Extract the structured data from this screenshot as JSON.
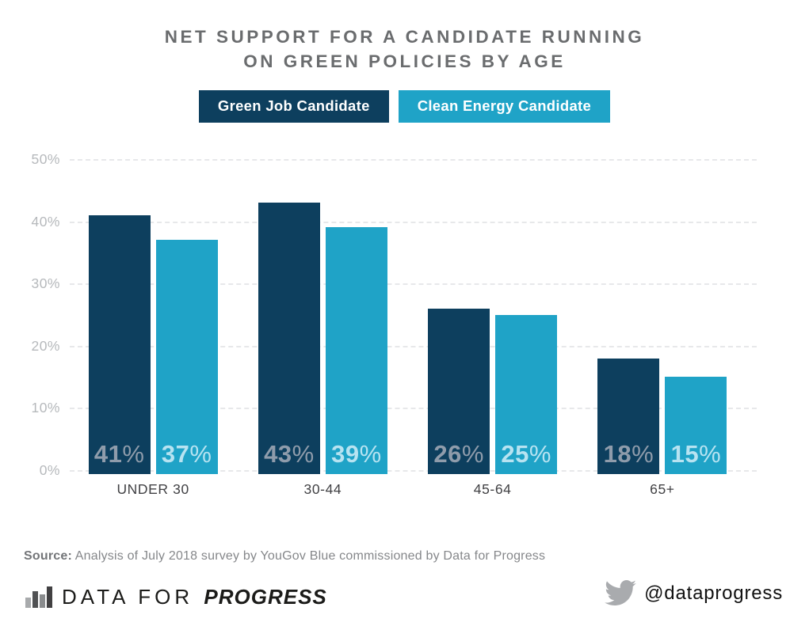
{
  "title": {
    "line1": "NET SUPPORT FOR A CANDIDATE RUNNING",
    "line2": "ON GREEN POLICIES BY AGE"
  },
  "legend": [
    {
      "label": "Green Job Candidate",
      "color": "#0d3f5e"
    },
    {
      "label": "Clean Energy Candidate",
      "color": "#1fa3c7"
    }
  ],
  "chart_data": {
    "type": "bar",
    "title": "NET SUPPORT FOR A CANDIDATE RUNNING ON GREEN POLICIES BY AGE",
    "categories": [
      "UNDER 30",
      "30-44",
      "45-64",
      "65+"
    ],
    "series": [
      {
        "name": "Green Job Candidate",
        "color": "#0d3f5e",
        "label_color": "#8f9cab",
        "values": [
          41,
          43,
          26,
          18
        ]
      },
      {
        "name": "Clean Energy Candidate",
        "color": "#1fa3c7",
        "label_color": "#b7e3f1",
        "values": [
          37,
          39,
          25,
          15
        ]
      }
    ],
    "value_suffix": "%",
    "xlabel": "",
    "ylabel": "",
    "ylim": [
      0,
      50
    ],
    "yticks": [
      0,
      10,
      20,
      30,
      40,
      50
    ],
    "ytick_suffix": "%",
    "grid": "dashed-horizontal",
    "legend_position": "top"
  },
  "source": {
    "prefix": "Source:",
    "text": "Analysis of July 2018 survey by YouGov Blue commissioned by Data for Progress"
  },
  "footer": {
    "logo_text_light": "DATA FOR",
    "logo_text_bold": "PROGRESS",
    "twitter_icon": "twitter-bird-icon",
    "twitter_handle": "@dataprogress"
  },
  "colors": {
    "title_text": "#6a6c6e",
    "axis_tick_text": "#b6b9bc",
    "category_text": "#414144",
    "gridline": "#e7e8ea",
    "background": "#ffffff"
  }
}
